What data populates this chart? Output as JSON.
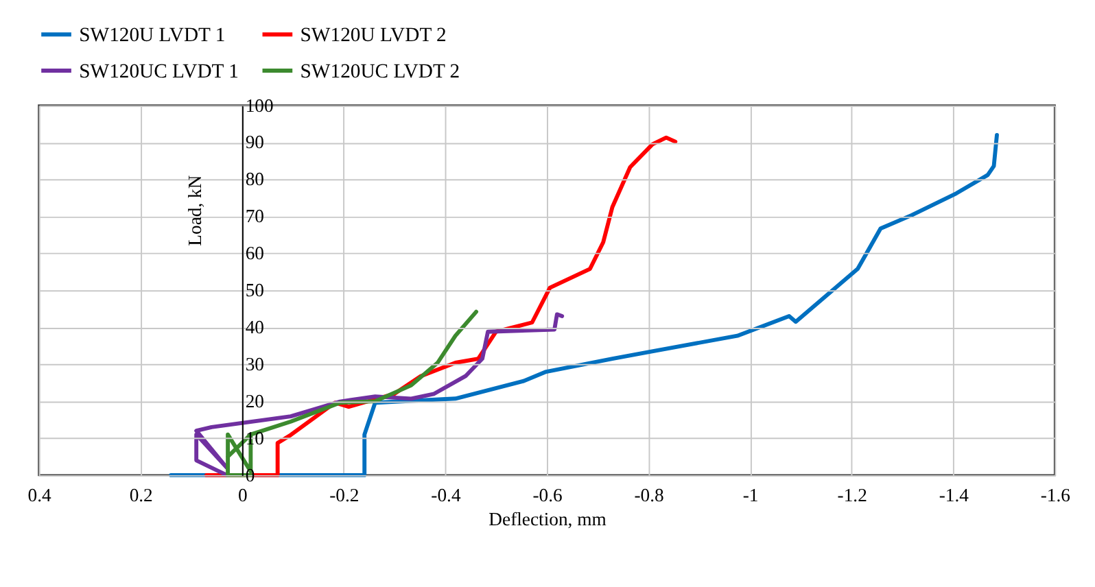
{
  "chart_data": {
    "type": "line",
    "xlabel": "Deflection, mm",
    "ylabel": "Load, kN",
    "xlim": [
      0.4,
      -1.6
    ],
    "xticks": [
      0.4,
      0.2,
      0,
      -0.2,
      -0.4,
      -0.6,
      -0.8,
      -1,
      -1.2,
      -1.4,
      -1.6
    ],
    "ylim": [
      0,
      100
    ],
    "yticks": [
      0,
      10,
      20,
      30,
      40,
      50,
      60,
      70,
      80,
      90,
      100
    ],
    "grid": true,
    "legend": "top",
    "marker": "none",
    "line_style": "solid",
    "series": [
      {
        "name": "SW120U LVDT 1",
        "color": "#0070c0",
        "x": [
          0.14,
          -0.24,
          -0.241,
          -0.241,
          -0.262,
          -0.42,
          -0.553,
          -0.597,
          -0.729,
          -0.8,
          -0.975,
          -1.077,
          -1.09,
          -1.212,
          -1.257,
          -1.318,
          -1.406,
          -1.468,
          -1.48,
          -1.486
        ],
        "values": [
          0,
          0,
          0,
          11,
          19.6,
          20.7,
          25.4,
          27.9,
          31.5,
          33.3,
          37.7,
          43,
          41.5,
          55.8,
          66.7,
          70.3,
          76.2,
          81.2,
          83.6,
          92
        ]
      },
      {
        "name": "SW120U LVDT 2",
        "color": "#ff0000",
        "x": [
          0.07,
          -0.07,
          -0.07,
          -0.096,
          -0.183,
          -0.21,
          -0.3,
          -0.352,
          -0.42,
          -0.465,
          -0.5,
          -0.571,
          -0.606,
          -0.685,
          -0.711,
          -0.729,
          -0.764,
          -0.808,
          -0.835,
          -0.853
        ],
        "values": [
          0,
          0,
          8.7,
          10.9,
          19.6,
          18.5,
          22,
          26.8,
          30.4,
          31.5,
          38.8,
          41.3,
          50.7,
          55.8,
          63,
          72.5,
          83.3,
          89.5,
          91.3,
          90.2
        ]
      },
      {
        "name": "SW120UC LVDT 1",
        "color": "#7030a0",
        "x": [
          0.03,
          0.09,
          0.09,
          0.03,
          0.09,
          0.06,
          -0.096,
          -0.193,
          -0.262,
          -0.333,
          -0.378,
          -0.44,
          -0.473,
          -0.484,
          -0.615,
          -0.62,
          -0.63
        ],
        "values": [
          0,
          4,
          11,
          2,
          12,
          13,
          15.9,
          19.9,
          21.3,
          20.7,
          22,
          26.8,
          31.5,
          38.8,
          39.4,
          43.5,
          43
        ]
      },
      {
        "name": "SW120UC LVDT 2",
        "color": "#3c8a2e",
        "x": [
          -0.017,
          0.028,
          0.028,
          -0.017,
          -0.017,
          0.028,
          -0.017,
          -0.096,
          -0.193,
          -0.262,
          -0.333,
          -0.385,
          -0.42,
          -0.461
        ],
        "values": [
          0,
          0,
          11,
          1,
          11,
          5,
          11,
          14.5,
          19.6,
          20,
          24.3,
          30.4,
          37.7,
          44.2
        ]
      }
    ]
  }
}
